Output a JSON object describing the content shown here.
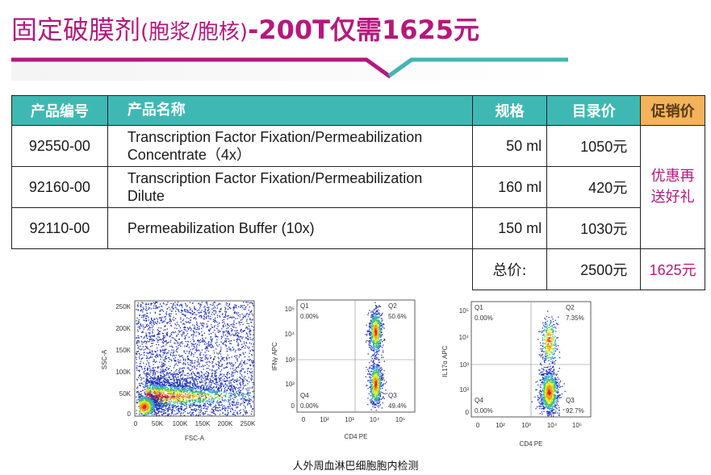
{
  "title": {
    "prefix": "固定破膜剂",
    "paren": "(胞浆/胞核)",
    "suffix": "-200T仅需1625元"
  },
  "table": {
    "headers": {
      "code": "产品编号",
      "name": "产品名称",
      "spec": "规格",
      "list_price": "目录价",
      "promo": "促销价"
    },
    "rows": [
      {
        "code": "92550-00",
        "name_line1": "Transcription Factor Fixation/Permeabilization",
        "name_line2": "Concentrate（4x）",
        "spec": "50 ml",
        "price": "1050元"
      },
      {
        "code": "92160-00",
        "name_line1": "Transcription Factor Fixation/Permeabilization",
        "name_line2": "Dilute",
        "spec": "160 ml",
        "price": "420元"
      },
      {
        "code": "92110-00",
        "name_line1": "Permeabilization Buffer (10x)",
        "name_line2": "",
        "spec": "150 ml",
        "price": "1030元"
      }
    ],
    "promo_line1": "优惠再",
    "promo_line2": "送好礼",
    "total_label": "总价:",
    "total_value": "2500元",
    "total_promo": "1625元"
  },
  "plots": {
    "scatter": {
      "ylabel": "SSC-A",
      "xlabel": "FSC-A",
      "yticks": [
        "250K",
        "200K",
        "150K",
        "100K",
        "50K",
        "0"
      ],
      "xticks": [
        "0",
        "50K",
        "100K",
        "150K",
        "200K",
        "250K"
      ]
    },
    "quad1": {
      "ylabel": "IFNγ APC",
      "xlabel": "CD4 PE",
      "q1": "Q1",
      "q1_val": "0.00%",
      "q2": "Q2",
      "q2_val": "50.6%",
      "q3": "Q3",
      "q3_val": "49.4%",
      "q4": "Q4",
      "q4_val": "0.00%"
    },
    "quad2": {
      "ylabel": "IL17α APC",
      "xlabel": "CD4 PE",
      "q1": "Q1",
      "q1_val": "0.00%",
      "q2": "Q2",
      "q2_val": "7.35%",
      "q3": "Q3",
      "q3_val": "92.7%",
      "q4": "Q4",
      "q4_val": "0.00%"
    },
    "log_ticks": [
      "10⁵",
      "10⁴",
      "10³",
      "10²",
      "0"
    ],
    "log_xticks": [
      "0",
      "10²",
      "10³",
      "10⁴",
      "10⁵"
    ]
  },
  "caption": "人外周血淋巴细胞胞内检测",
  "colors": {
    "magenta": "#b5187e",
    "teal": "#3fb8b4",
    "orange": "#f2b35b"
  }
}
